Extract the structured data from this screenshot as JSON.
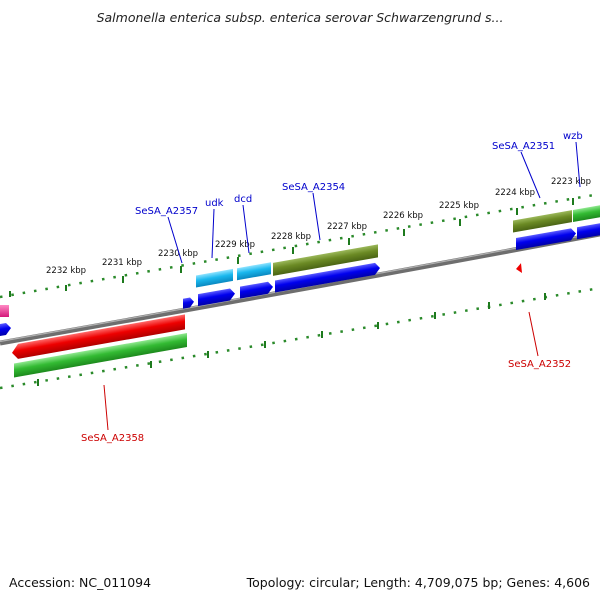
{
  "title": "Salmonella enterica subsp. enterica serovar Schwarzengrund s...",
  "footer": {
    "accession": "Accession: NC_011094",
    "summary": "Topology: circular; Length: 4,709,075 bp; Genes: 4,606"
  },
  "ticks": [
    {
      "label": "2232 kbp"
    },
    {
      "label": "2231 kbp"
    },
    {
      "label": "2230 kbp"
    },
    {
      "label": "2229 kbp"
    },
    {
      "label": "2228 kbp"
    },
    {
      "label": "2227 kbp"
    },
    {
      "label": "2226 kbp"
    },
    {
      "label": "2225 kbp"
    },
    {
      "label": "2224 kbp"
    },
    {
      "label": "2223 kbp"
    }
  ],
  "genes": {
    "upper": [
      {
        "name": "SeSA_A2357",
        "color": "#0000cc"
      },
      {
        "name": "udk",
        "color": "#0000cc"
      },
      {
        "name": "dcd",
        "color": "#0000cc"
      },
      {
        "name": "SeSA_A2354",
        "color": "#0000cc"
      },
      {
        "name": "SeSA_A2351",
        "color": "#0000cc"
      },
      {
        "name": "wzb",
        "color": "#0000cc"
      }
    ],
    "lower": [
      {
        "name": "SeSA_A2358",
        "color": "#cc0000"
      },
      {
        "name": "SeSA_A2352",
        "color": "#cc0000"
      }
    ]
  },
  "colors": {
    "backbone": "#777777",
    "tick_track": "#2a8a2a",
    "cds_blue": "#0000ee",
    "cds_cyan": "#1ab8ee",
    "cds_olive": "#6b8a24",
    "cds_red": "#ee0000",
    "cds_green": "#33bb33",
    "cds_pink": "#ee3399"
  }
}
